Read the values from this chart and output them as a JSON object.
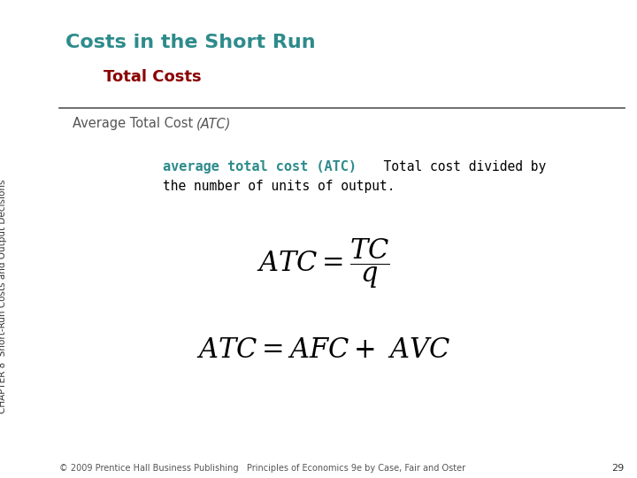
{
  "title": "Costs in the Short Run",
  "title_color": "#2E8B8B",
  "subtitle": "Total Costs",
  "subtitle_color": "#8B0000",
  "section_label_normal": "Average Total Cost ",
  "section_label_italic": "(ATC)",
  "section_label_color": "#555555",
  "definition_bold": "average total cost (ATC)",
  "definition_bold_color": "#2E8B8B",
  "definition_rest_line1": "  Total cost divided by",
  "definition_rest_line2": "the number of units of output.",
  "definition_rest_color": "#000000",
  "side_text": "CHAPTER 8  Short-Run Costs and Output Decisions",
  "footer_text": "© 2009 Prentice Hall Business Publishing   Principles of Economics 9e by Case, Fair and Oster",
  "footer_page": "29",
  "bg_color": "#ffffff",
  "line_color": "#555555"
}
